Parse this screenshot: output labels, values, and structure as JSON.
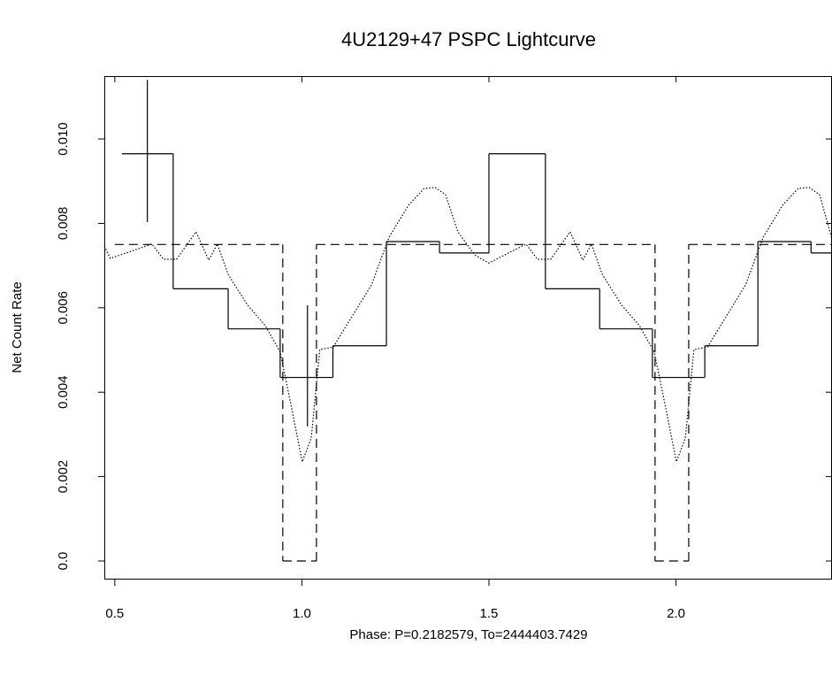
{
  "chart_data": {
    "type": "line",
    "title": "4U2129+47 PSPC Lightcurve",
    "x_label": "Phase:  P=0.2182579, To=2444403.7429",
    "y_label": "Net Count Rate",
    "xlim": [
      0.472,
      2.417
    ],
    "ylim": [
      -0.00044,
      0.01149
    ],
    "xticks": [
      0.5,
      {
        "value": 1,
        "label": "1.0"
      },
      1.5,
      {
        "value": 2,
        "label": "2.0"
      }
    ],
    "yticks": [
      {
        "value": 0,
        "label": "0.0"
      },
      0.002,
      0.004,
      0.006,
      0.008,
      {
        "value": 0.01,
        "label": "0.010"
      }
    ],
    "series": [
      {
        "style": "step",
        "color": "#000000",
        "bins": [
          0.519,
          0.656,
          0.803,
          0.942,
          1.083,
          1.226,
          1.368,
          1.5,
          1.651,
          1.796,
          1.937,
          2.077,
          2.219,
          2.361,
          2.417
        ],
        "values": [
          0.00965,
          0.00645,
          0.0055,
          0.00435,
          0.0051,
          0.00757,
          0.0073,
          0.00965,
          0.00645,
          0.0055,
          0.00435,
          0.0051,
          0.00757,
          0.0073
        ]
      },
      {
        "style": "dashed",
        "color": "#000000",
        "bins": [
          0.5,
          0.949,
          1.039,
          1.944,
          2.034,
          2.417
        ],
        "values": [
          0.0075,
          0,
          0.0075,
          0,
          0.0075
        ]
      },
      {
        "style": "dotted",
        "color": "#000000",
        "x": [
          0.472,
          0.488,
          0.599,
          0.63,
          0.665,
          0.717,
          0.751,
          0.774,
          0.803,
          0.855,
          0.902,
          0.942,
          0.972,
          1.001,
          1.025,
          1.048,
          1.084,
          1.138,
          1.186,
          1.233,
          1.285,
          1.327,
          1.356,
          1.384,
          1.417,
          1.462,
          1.5,
          1.599,
          1.63,
          1.665,
          1.717,
          1.751,
          1.774,
          1.803,
          1.855,
          1.902,
          1.942,
          1.972,
          2.001,
          2.025,
          2.048,
          2.084,
          2.138,
          2.186,
          2.233,
          2.285,
          2.327,
          2.356,
          2.384,
          2.417
        ],
        "values": [
          0.00746,
          0.00717,
          0.00751,
          0.00715,
          0.00715,
          0.0078,
          0.00713,
          0.00751,
          0.00679,
          0.00606,
          0.00558,
          0.00495,
          0.00365,
          0.00235,
          0.00291,
          0.00501,
          0.00507,
          0.00585,
          0.00654,
          0.00767,
          0.00843,
          0.00883,
          0.00885,
          0.00868,
          0.0078,
          0.00725,
          0.00706,
          0.00751,
          0.00715,
          0.00715,
          0.0078,
          0.00713,
          0.00751,
          0.00679,
          0.00606,
          0.00558,
          0.00495,
          0.00365,
          0.00235,
          0.00291,
          0.00501,
          0.00507,
          0.00585,
          0.00654,
          0.00767,
          0.00843,
          0.00883,
          0.00885,
          0.00868,
          0.00763
        ]
      }
    ],
    "error_bars": {
      "x": [
        0.587,
        1.015
      ],
      "values": [
        0.00965,
        0.00435
      ],
      "low": [
        0.00803,
        0.00319
      ],
      "high": [
        0.0114,
        0.00606
      ]
    }
  }
}
